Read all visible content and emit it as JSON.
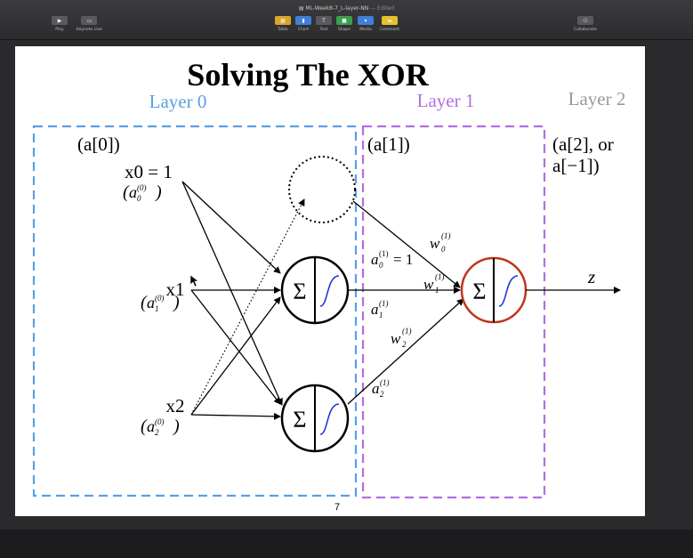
{
  "window": {
    "doc_title": "ML-Week8-7_L-layer-NN",
    "doc_status": "Edited"
  },
  "toolbar": {
    "play_label": "Play",
    "keynote_live_label": "Keynote Live",
    "table_label": "Table",
    "chart_label": "Chart",
    "text_label": "Text",
    "shape_label": "Shape",
    "media_label": "Media",
    "comment_label": "Comment",
    "collaborate_label": "Collaborate"
  },
  "slide": {
    "title": "Solving The XOR",
    "page_number": "7",
    "layer0_label": "Layer 0",
    "layer1_label": "Layer 1",
    "layer2_label": "Layer 2",
    "a0_label": "(a[0])",
    "a1_label": "(a[1])",
    "a2_label_line1": "(a[2], or",
    "a2_label_line2": "a[−1])",
    "x0_label": "x0 = 1",
    "x1_label": "x1",
    "x2_label": "x2",
    "z_label": "z",
    "sigma": "Σ",
    "colors": {
      "layer0": "#5aa0e0",
      "layer1": "#b46ee0",
      "layer2": "#999999",
      "output_neuron": "#c0341d",
      "activation_curve": "#1a3ad6"
    }
  }
}
